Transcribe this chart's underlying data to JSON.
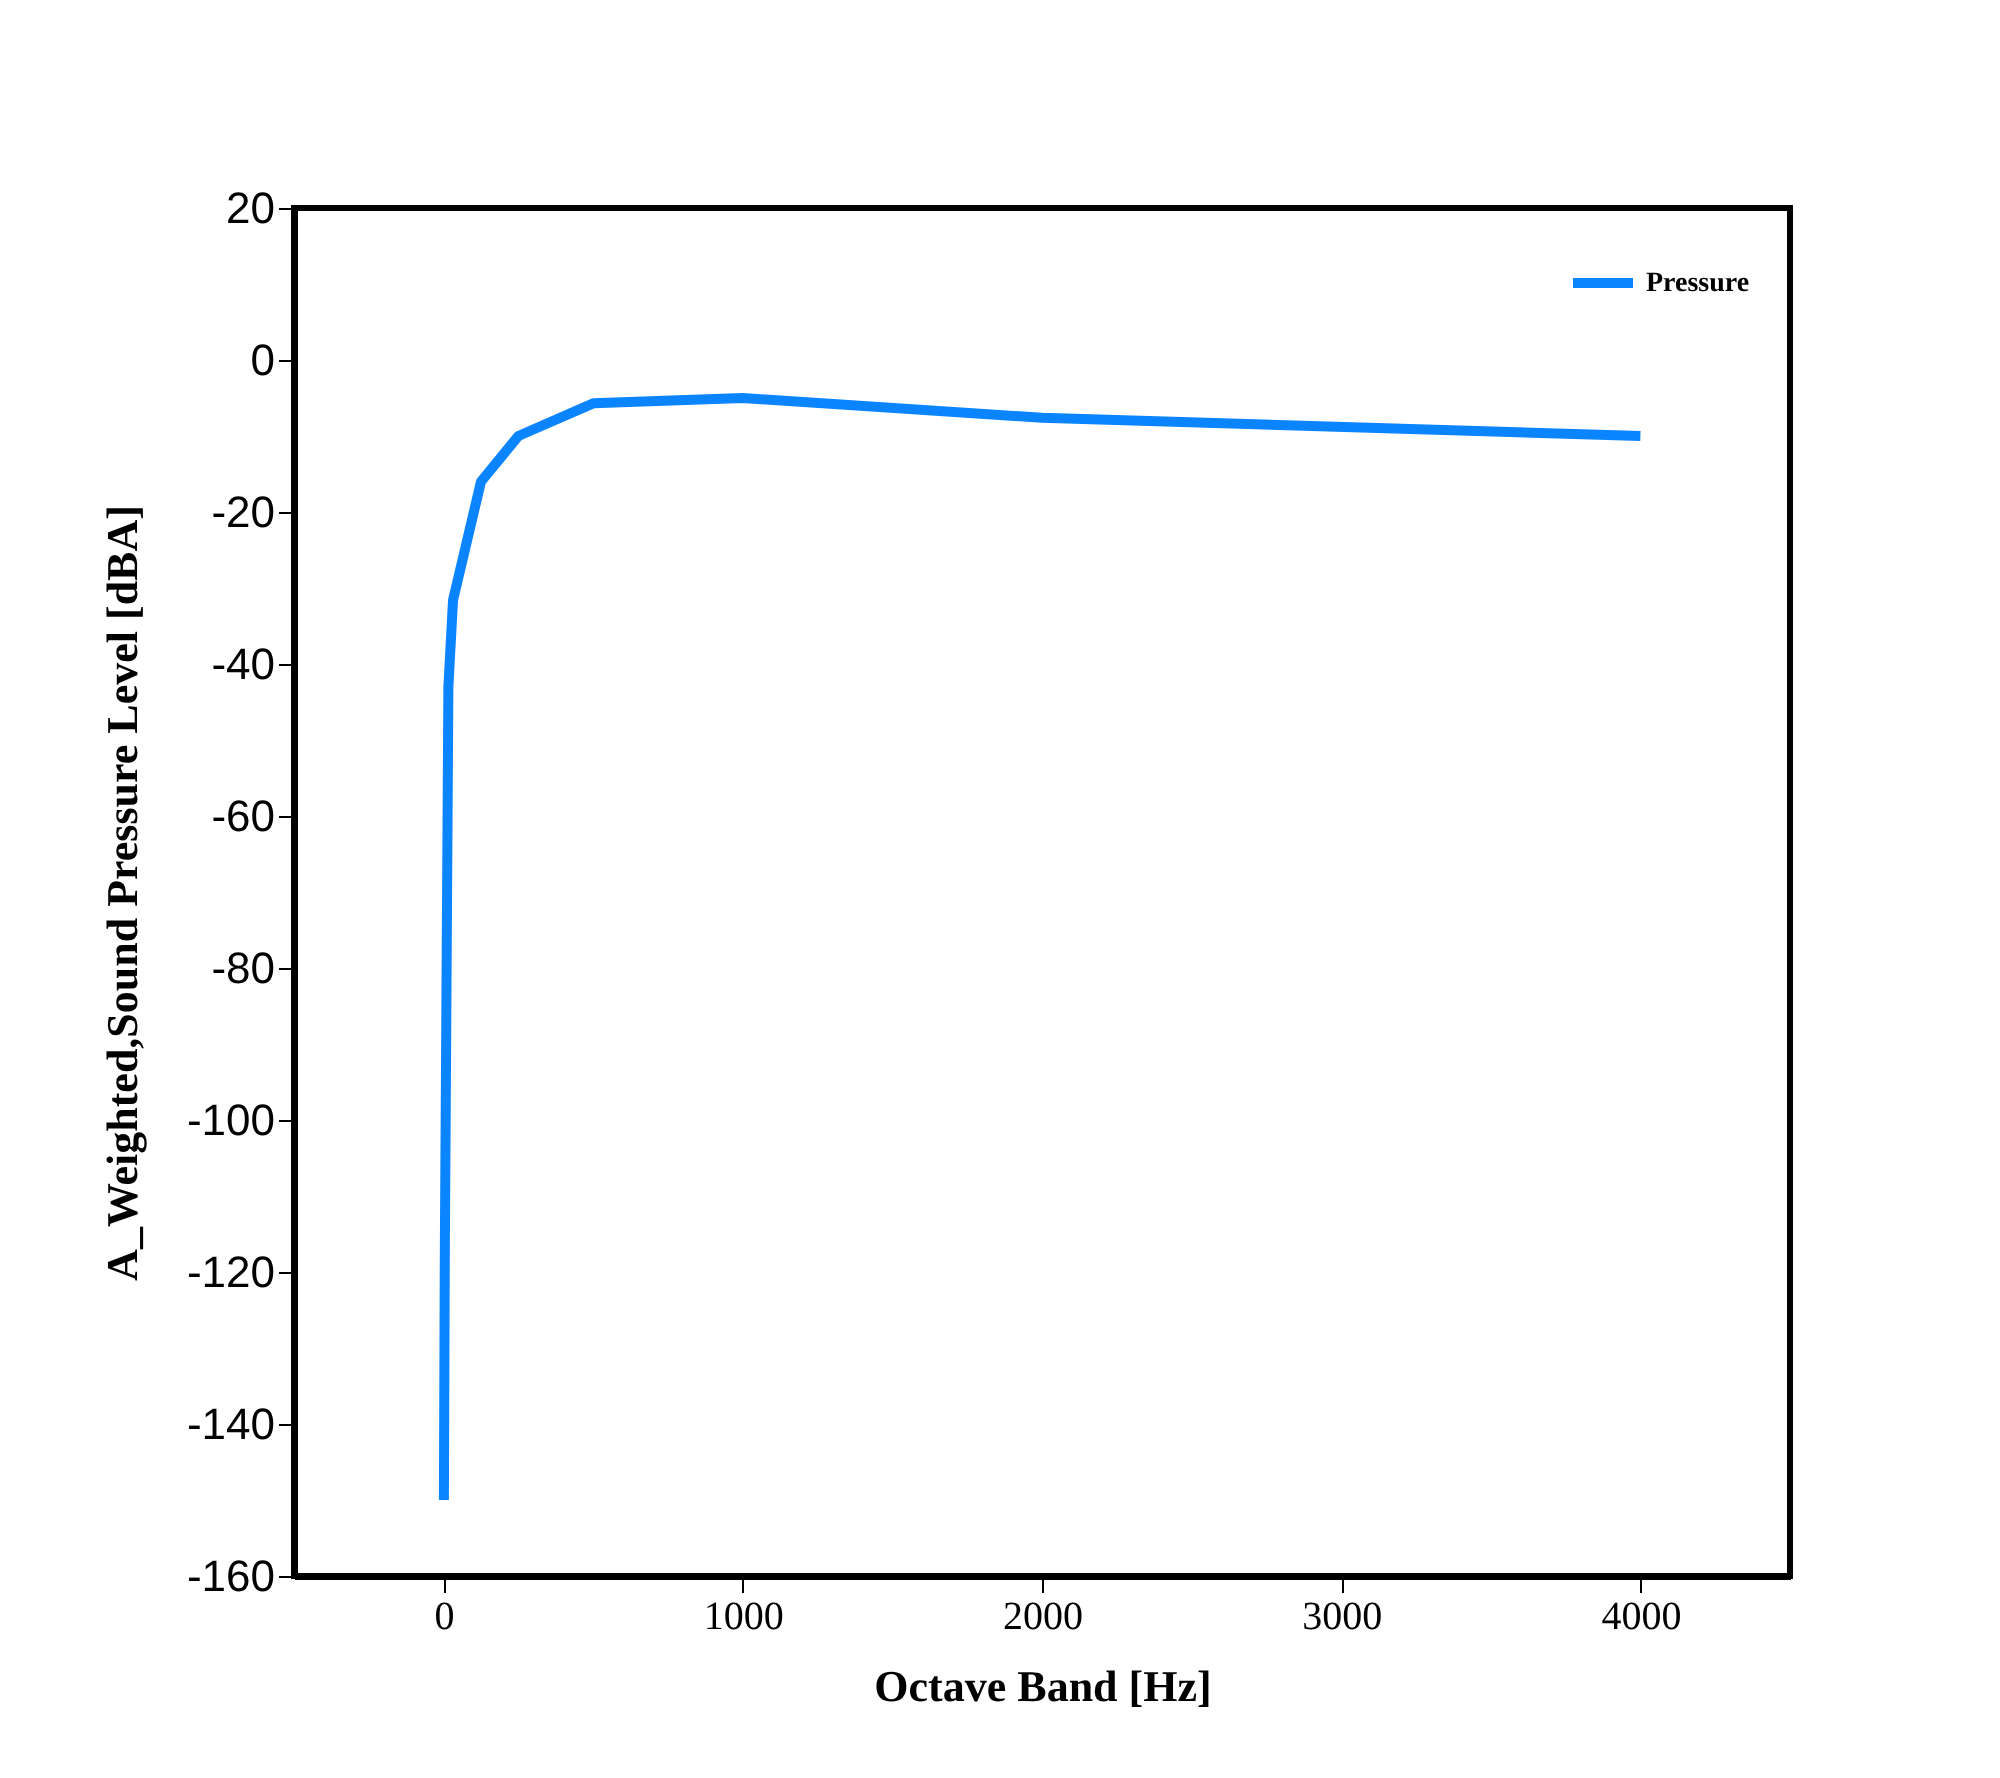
{
  "chart_data": {
    "type": "line",
    "xlabel": "Octave Band [Hz]",
    "ylabel": "A_Weighted,Sound Pressure Level [dBA]",
    "x": [
      1,
      4,
      16,
      31.5,
      125,
      250,
      500,
      1000,
      2000,
      4000
    ],
    "series": [
      {
        "name": "Pressure",
        "color": "#0a84ff",
        "values": [
          -150,
          -118,
          -43,
          -31.6,
          -16,
          -10,
          -5.7,
          -5,
          -7.6,
          -10
        ]
      }
    ],
    "xlim": [
      -500,
      4500
    ],
    "xticks": [
      0,
      1000,
      2000,
      3000,
      4000
    ],
    "ylim": [
      -160,
      20
    ],
    "yticks": [
      -160,
      -140,
      -120,
      -100,
      -80,
      -60,
      -40,
      -20,
      0,
      20
    ],
    "grid": false,
    "legend": "top right",
    "marker": "none",
    "line_style": "solid"
  }
}
